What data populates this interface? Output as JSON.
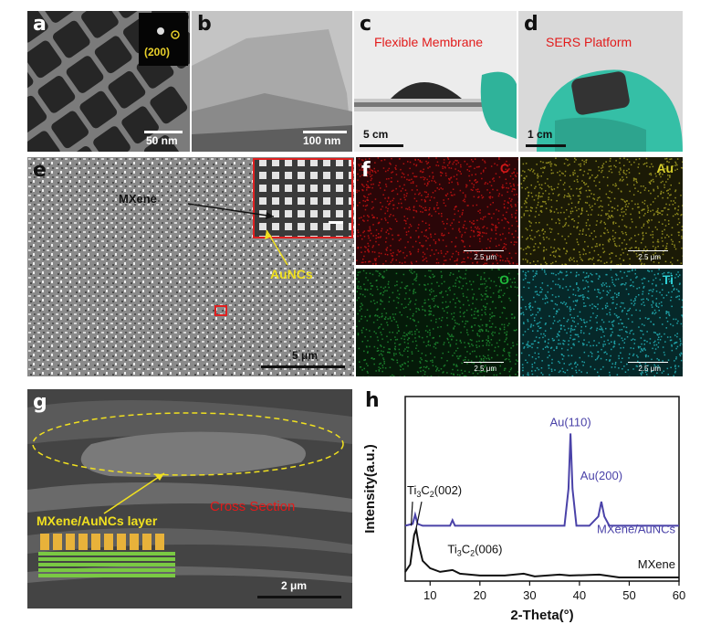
{
  "panels": {
    "a": {
      "label": "a",
      "inset_text": "(200)",
      "scale": "50 nm"
    },
    "b": {
      "label": "b",
      "scale": "100 nm"
    },
    "c": {
      "label": "c",
      "title": "Flexible Membrane",
      "scale": "5 cm"
    },
    "d": {
      "label": "d",
      "title": "SERS Platform",
      "scale": "1 cm"
    },
    "e": {
      "label": "e",
      "mxene": "MXene",
      "aunc": "AuNCs",
      "scale": "5 μm"
    },
    "f": {
      "label": "f",
      "maps": [
        {
          "element": "C",
          "color": "#d21818",
          "bg": "#2a0608",
          "dot": "#b01010",
          "scale": "2.5 μm"
        },
        {
          "element": "Au",
          "color": "#d8cf2c",
          "bg": "#1b1a06",
          "dot": "#8f8a1e",
          "scale": "2.5 μm"
        },
        {
          "element": "O",
          "color": "#1fb53a",
          "bg": "#051a09",
          "dot": "#1b7c2b",
          "scale": "2.5 μm"
        },
        {
          "element": "Ti",
          "color": "#2ed1d6",
          "bg": "#062829",
          "dot": "#1fa0a6",
          "scale": "2.5 μm"
        }
      ]
    },
    "g": {
      "label": "g",
      "layer": "MXene/AuNCs layer",
      "section": "Cross Section",
      "scale": "2 μm"
    },
    "h": {
      "label": "h"
    }
  },
  "chart_data": {
    "type": "line",
    "xlabel": "2-Theta(°)",
    "ylabel": "Intensity(a.u.)",
    "xlim": [
      5,
      60
    ],
    "xticks": [
      10,
      20,
      30,
      40,
      50,
      60
    ],
    "series": [
      {
        "name": "MXene/AuNCs",
        "color": "#4a42a8",
        "x": [
          5,
          6.5,
          7.0,
          7.5,
          8.5,
          10,
          14,
          14.5,
          15,
          20,
          30,
          37,
          37.8,
          38.2,
          38.6,
          39.4,
          42,
          43.8,
          44.4,
          45.0,
          46,
          60
        ],
        "y": [
          0.3,
          0.31,
          0.36,
          0.31,
          0.3,
          0.3,
          0.3,
          0.33,
          0.3,
          0.3,
          0.3,
          0.3,
          0.5,
          0.8,
          0.5,
          0.3,
          0.3,
          0.35,
          0.43,
          0.35,
          0.3,
          0.3
        ]
      },
      {
        "name": "MXene",
        "color": "#111111",
        "x": [
          5,
          6.0,
          6.8,
          7.2,
          7.7,
          8.5,
          10,
          12,
          14.5,
          16,
          20,
          25,
          28.8,
          31,
          36,
          38,
          44,
          48,
          60
        ],
        "y": [
          0.05,
          0.09,
          0.25,
          0.28,
          0.2,
          0.11,
          0.07,
          0.05,
          0.06,
          0.04,
          0.03,
          0.03,
          0.04,
          0.025,
          0.035,
          0.03,
          0.035,
          0.02,
          0.02
        ]
      }
    ],
    "annotations": [
      {
        "text": "Au(110)"
      },
      {
        "text": "Au(200)"
      },
      {
        "text": "Ti3C2(002)"
      },
      {
        "text": "Ti3C2(006)"
      }
    ]
  }
}
